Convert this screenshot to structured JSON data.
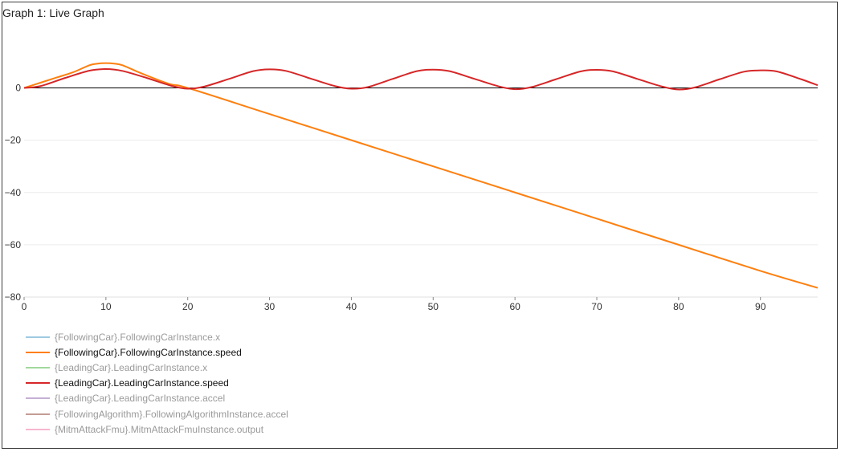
{
  "window": {
    "title": "Graph 1: Live Graph"
  },
  "chart_data": {
    "type": "line",
    "title": "Graph 1: Live Graph",
    "xlabel": "",
    "ylabel": "",
    "xlim": [
      0,
      97
    ],
    "ylim": [
      -80,
      10
    ],
    "x_ticks": [
      "0",
      "10",
      "20",
      "30",
      "40",
      "50",
      "60",
      "70",
      "80",
      "90"
    ],
    "y_ticks": [
      "0",
      "−20",
      "−40",
      "−60",
      "−80"
    ],
    "grid": "horizontal",
    "zero_line": true,
    "legend_position": "bottom-left",
    "series": [
      {
        "name": "{FollowingCar}.FollowingCarInstance.x",
        "color": "#9ecae1",
        "enabled": false,
        "x": [],
        "values": []
      },
      {
        "name": "{FollowingCar}.FollowingCarInstance.speed",
        "color": "#ff7f0e",
        "enabled": true,
        "x": [
          0,
          2,
          4,
          6,
          8,
          9,
          10,
          11,
          12,
          14,
          16,
          18,
          20,
          30,
          40,
          50,
          60,
          70,
          80,
          90,
          97
        ],
        "values": [
          0,
          2,
          4,
          6,
          8.7,
          9.3,
          9.5,
          9.3,
          8.7,
          6,
          3.5,
          1.3,
          0,
          -10,
          -20,
          -30,
          -40,
          -50,
          -60,
          -70,
          -76.5
        ]
      },
      {
        "name": "{LeadingCar}.LeadingCarInstance.x",
        "color": "#a1d99b",
        "enabled": false,
        "x": [],
        "values": []
      },
      {
        "name": "{LeadingCar}.LeadingCarInstance.speed",
        "color": "#d62728",
        "enabled": true,
        "x": [
          0,
          2,
          5,
          8,
          10,
          12,
          15,
          18,
          20,
          22,
          25,
          28,
          30,
          32,
          35,
          38,
          40,
          42,
          45,
          48,
          50,
          52,
          55,
          58,
          60,
          62,
          65,
          68,
          70,
          72,
          75,
          78,
          80,
          82,
          85,
          88,
          90,
          92,
          95,
          97
        ],
        "values": [
          0,
          0.7,
          3.8,
          6.6,
          7.2,
          6.5,
          3.8,
          0.8,
          -0.3,
          0.5,
          3.4,
          6.4,
          7.1,
          6.5,
          3.6,
          0.7,
          -0.3,
          0.3,
          3.4,
          6.4,
          7.0,
          6.4,
          3.5,
          0.6,
          -0.5,
          0.3,
          3.3,
          6.3,
          6.9,
          6.3,
          3.4,
          0.5,
          -0.6,
          0.2,
          3.3,
          6.2,
          6.7,
          6.3,
          3.3,
          1.0
        ]
      },
      {
        "name": "{LeadingCar}.LeadingCarInstance.accel",
        "color": "#c5b0d5",
        "enabled": false,
        "x": [],
        "values": []
      },
      {
        "name": "{FollowingAlgorithm}.FollowingAlgorithmInstance.accel",
        "color": "#c49c94",
        "enabled": false,
        "x": [],
        "values": []
      },
      {
        "name": "{MitmAttackFmu}.MitmAttackFmuInstance.output",
        "color": "#f7b6d2",
        "enabled": false,
        "x": [],
        "values": []
      }
    ]
  },
  "legend": {
    "enabled_color": "#111111",
    "disabled_color": "#9a9a9a"
  }
}
